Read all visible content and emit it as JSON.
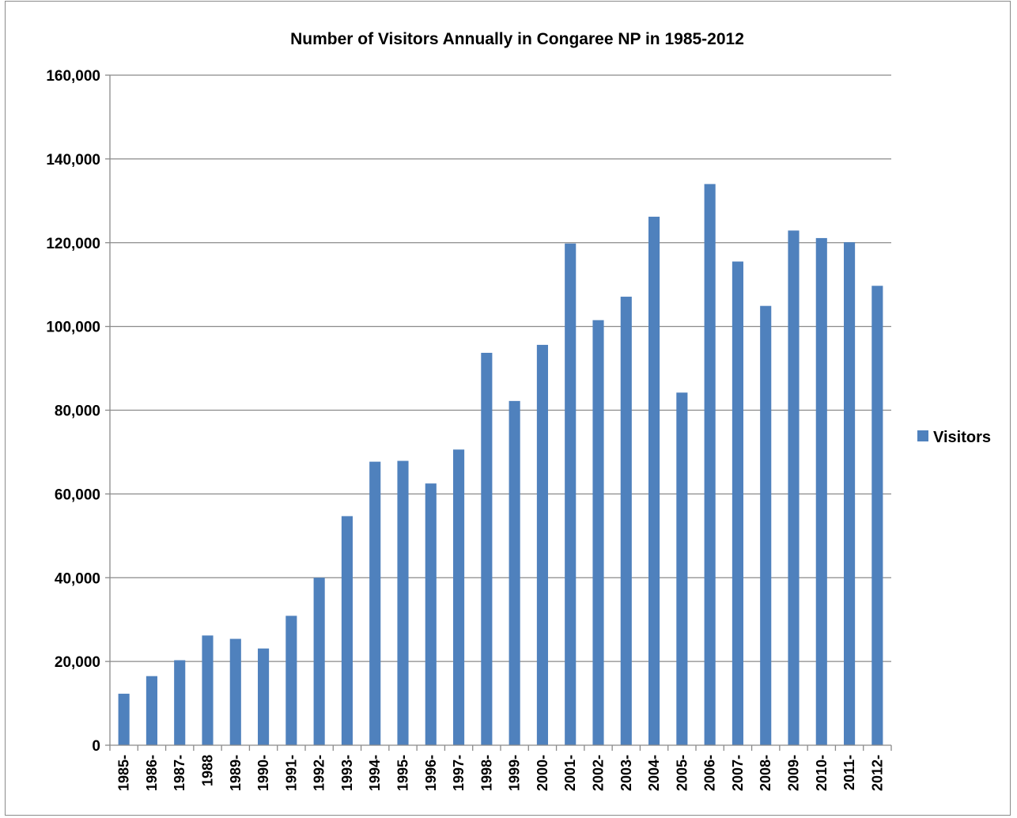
{
  "chart_data": {
    "type": "bar",
    "title": "Number of Visitors Annually in Congaree NP in 1985-2012",
    "xlabel": "",
    "ylabel": "",
    "ylim": [
      0,
      160000
    ],
    "yticks": [
      0,
      20000,
      40000,
      60000,
      80000,
      100000,
      120000,
      140000,
      160000
    ],
    "ytick_labels": [
      "0",
      "20,000",
      "40,000",
      "60,000",
      "80,000",
      "100,000",
      "120,000",
      "140,000",
      "160,000"
    ],
    "grid": "horizontal",
    "legend_position": "right",
    "categories": [
      "1985-",
      "1986-",
      "1987-",
      "1988",
      "1989-",
      "1990-",
      "1991-",
      "1992-",
      "1993-",
      "1994-",
      "1995-",
      "1996-",
      "1997-",
      "1998-",
      "1999-",
      "2000-",
      "2001-",
      "2002-",
      "2003-",
      "2004-",
      "2005-",
      "2006-",
      "2007-",
      "2008-",
      "2009-",
      "2010-",
      "2011-",
      "2012-"
    ],
    "series": [
      {
        "name": "Visitors",
        "color": "#4f81bd",
        "values": [
          12300,
          16500,
          20300,
          26200,
          25400,
          23100,
          30900,
          40000,
          54700,
          67700,
          67900,
          62500,
          70600,
          93700,
          82200,
          95600,
          119800,
          101500,
          107100,
          126200,
          84200,
          134000,
          115500,
          104900,
          122900,
          121100,
          120100,
          109700
        ]
      }
    ]
  }
}
